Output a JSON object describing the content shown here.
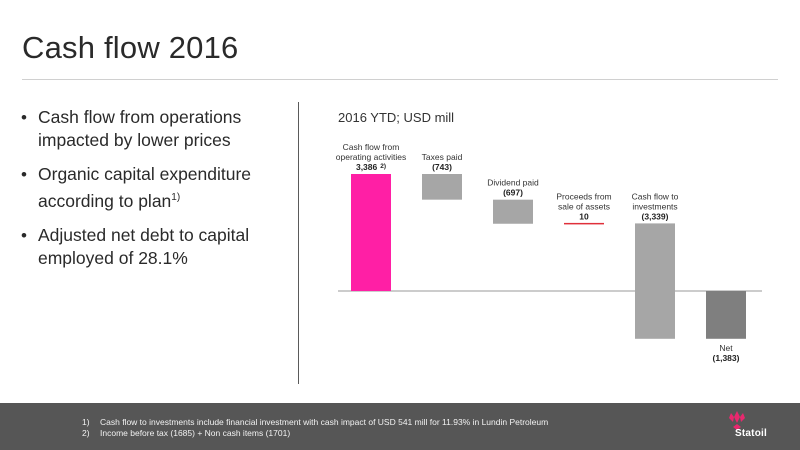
{
  "slide": {
    "title": "Cash flow 2016",
    "bullets": [
      {
        "text": "Cash flow from operations impacted by lower prices",
        "sup": ""
      },
      {
        "text": "Organic capital expenditure according to plan",
        "sup": "1)"
      },
      {
        "text": "Adjusted net debt to capital employed of 28.1%",
        "sup": ""
      }
    ],
    "chart_subtitle": "2016 YTD; USD mill",
    "footnotes": [
      {
        "num": "1)",
        "text": "Cash flow to investments include financial investment with cash impact of USD 541 mill for 11.93% in Lundin Petroleum"
      },
      {
        "num": "2)",
        "text": "Income before tax (1685) + Non cash items (1701)"
      }
    ],
    "logo_text": "Statoil"
  },
  "chart_data": {
    "type": "bar",
    "subtype": "waterfall",
    "title": "",
    "units": "USD mill",
    "categories": [
      "Cash flow from operating activities",
      "Taxes paid",
      "Dividend paid",
      "Proceeds from sale of assets",
      "Cash flow to investments",
      "Net"
    ],
    "label_lines": [
      [
        "Cash flow from",
        "operating activities"
      ],
      [
        "Taxes paid"
      ],
      [
        "Dividend paid"
      ],
      [
        "Proceeds from",
        "sale of assets"
      ],
      [
        "Cash flow to",
        "investments"
      ],
      [
        "Net"
      ]
    ],
    "values": [
      3386,
      -743,
      -697,
      10,
      -3339,
      -1383
    ],
    "value_labels": [
      "3,386",
      "(743)",
      "(697)",
      "10",
      "(3,339)",
      "(1,383)"
    ],
    "value_label_sups": [
      "2)",
      "",
      "",
      "",
      "",
      ""
    ],
    "colors": [
      "#ff1fa5",
      "#a6a6a6",
      "#a6a6a6",
      "#e0303a",
      "#a6a6a6",
      "#7f7f7f"
    ],
    "ylim": [
      -1383,
      3386
    ],
    "grid": false,
    "legend": "none"
  }
}
